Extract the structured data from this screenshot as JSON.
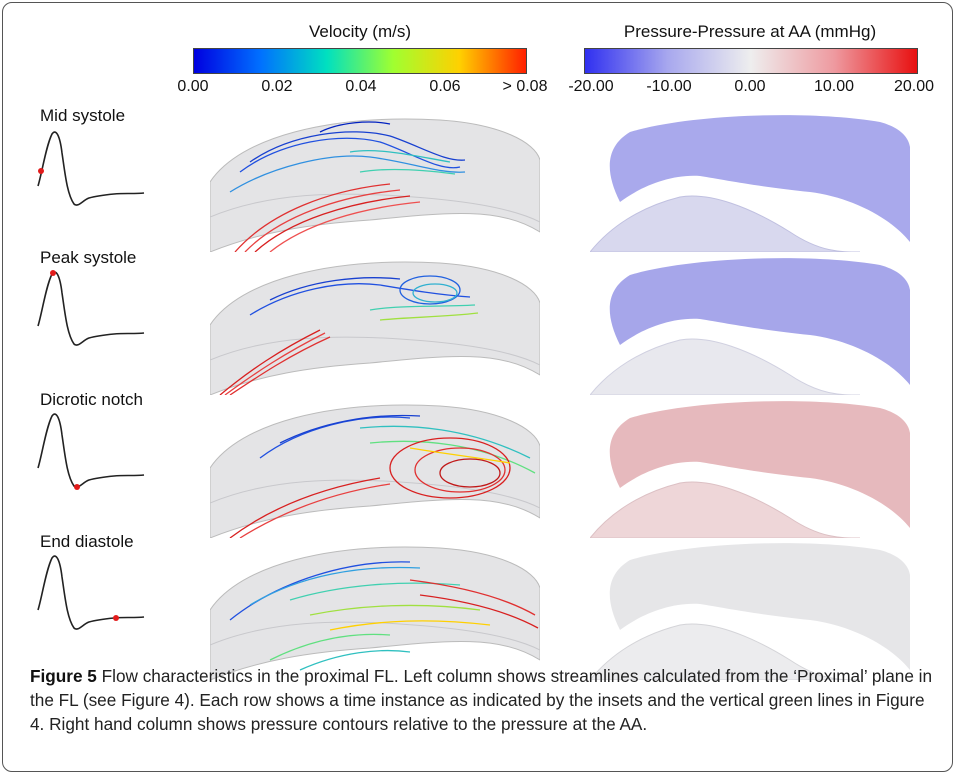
{
  "velocity_colorbar": {
    "title": "Velocity (m/s)",
    "ticks": [
      "0.00",
      "0.02",
      "0.04",
      "0.06",
      "> 0.08"
    ],
    "colors": [
      "#0000e0",
      "#0070ff",
      "#00e0c0",
      "#a0ff30",
      "#ffd000",
      "#ff2000"
    ]
  },
  "pressure_colorbar": {
    "title": "Pressure-Pressure at AA (mmHg)",
    "ticks": [
      "-20.00",
      "-10.00",
      "0.00",
      "10.00",
      "20.00"
    ],
    "colors": [
      "#3030f0",
      "#a8a8ee",
      "#eeeeee",
      "#ee9aa0",
      "#e81010"
    ]
  },
  "rows": [
    {
      "label": "Mid systole",
      "pressure_color": "#a9a9ec"
    },
    {
      "label": "Peak systole",
      "pressure_color": "#a6a6ea"
    },
    {
      "label": "Dicrotic notch",
      "pressure_color": "#e6b9bd"
    },
    {
      "label": "End diastole",
      "pressure_color": "#e6e6e8"
    }
  ],
  "caption": {
    "figure_label": "Figure 5",
    "text": " Flow characteristics in the proximal FL. Left column shows streamlines calculated from the ‘Proximal’ plane in the FL (see Figure 4). Each row shows a time instance as indicated by the insets and the vertical green lines in Figure 4. Right hand column shows pressure contours relative to the pressure at the AA."
  }
}
